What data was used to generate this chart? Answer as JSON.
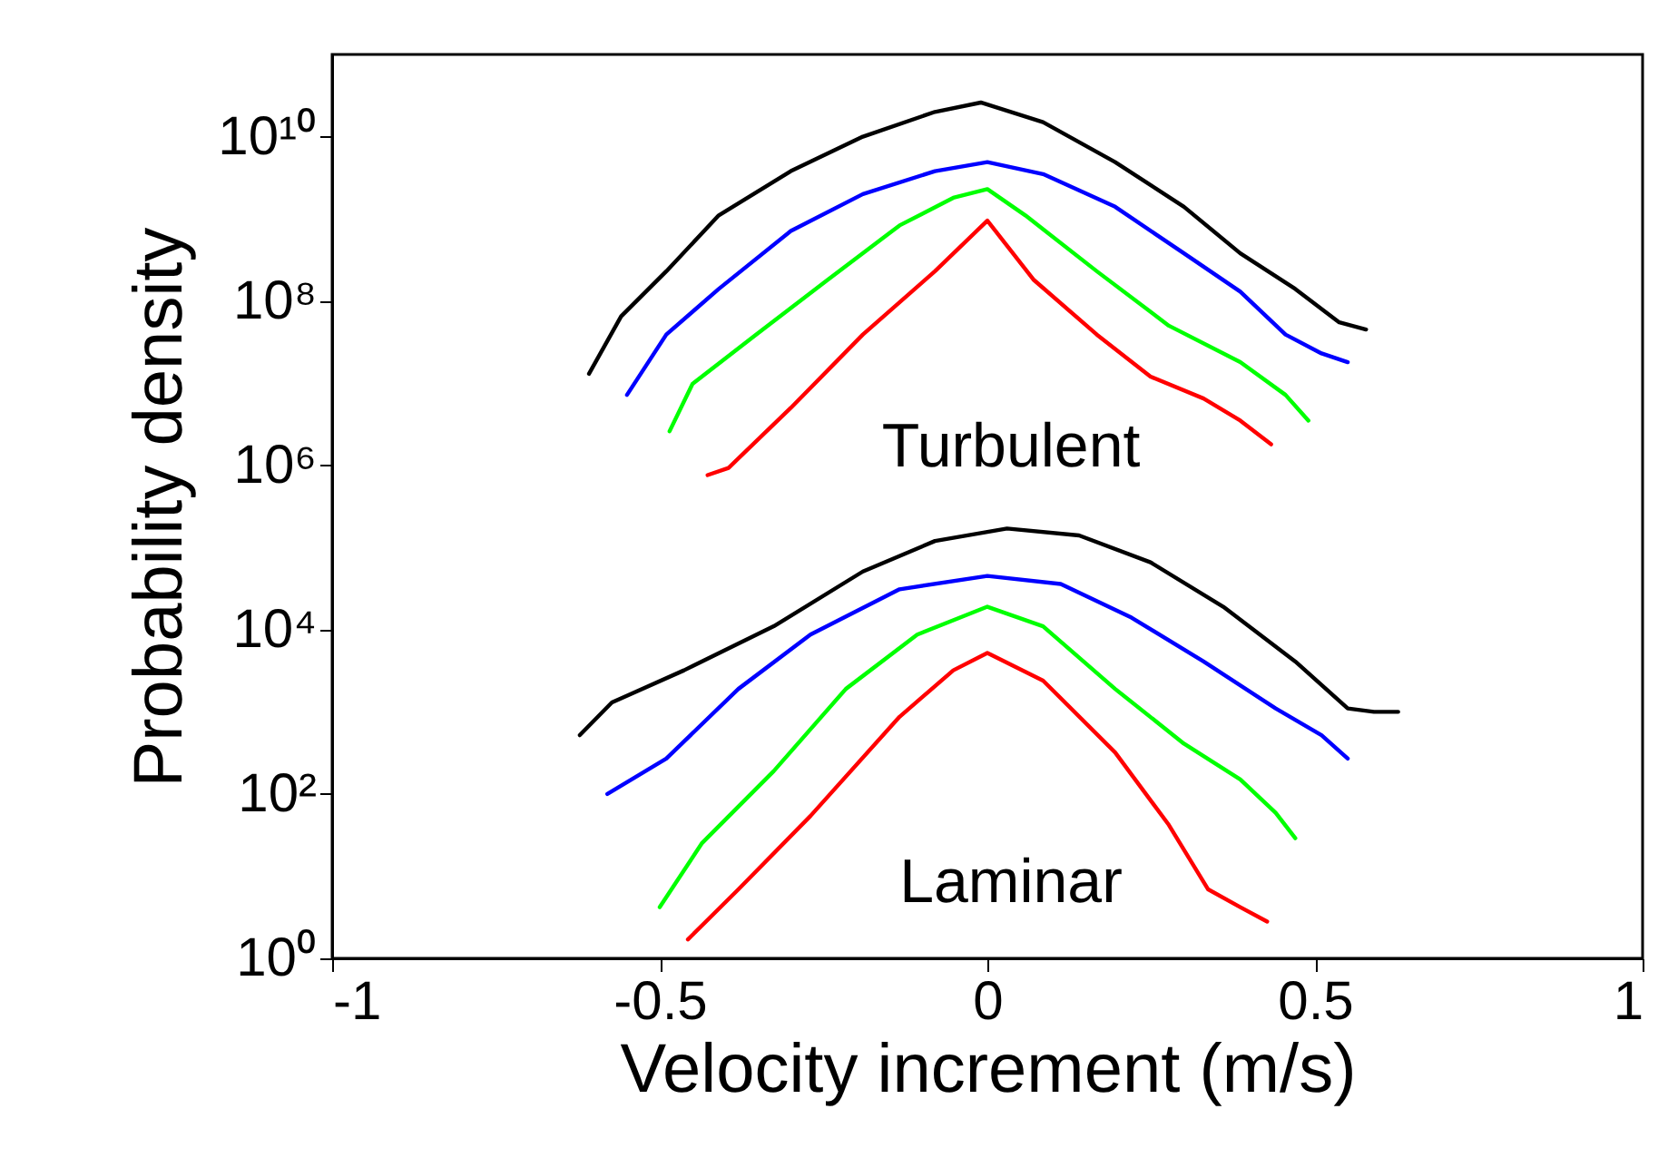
{
  "chart_data": {
    "type": "line",
    "xlabel": "Velocity increment (m/s)",
    "ylabel": "Probability density",
    "log": true,
    "grid": false,
    "legend": false,
    "marker": "none",
    "line_style": "solid",
    "xlim": [
      -1,
      1
    ],
    "xticks": [
      -1,
      -0.5,
      0,
      0.5,
      1
    ],
    "ylim": [
      1,
      100000000000.0
    ],
    "yticks": [
      {
        "value": 1,
        "label": "10⁰"
      },
      {
        "value": 100,
        "label": "10²"
      },
      {
        "value": 10000,
        "label": "10⁴"
      },
      {
        "value": 1000000,
        "label": "10⁶"
      },
      {
        "value": 100000000,
        "label": "10⁸"
      },
      {
        "value": 10000000000,
        "label": "10¹⁰"
      }
    ],
    "annotations": [
      "Turbulent",
      "Laminar"
    ],
    "series": [
      {
        "color": "#000000",
        "x": [
          -0.608,
          -0.559,
          -0.49,
          -0.41,
          -0.3,
          -0.19,
          -0.08,
          -0.01,
          0.085,
          0.195,
          0.3,
          0.386,
          0.47,
          0.537,
          0.578
        ],
        "values": [
          13000000.0,
          65000000.0,
          230000000.0,
          1100000000.0,
          3800000000.0,
          10000000000.0,
          20000000000.0,
          26000000000.0,
          15000000000.0,
          4900000000.0,
          1400000000.0,
          380000000.0,
          140000000.0,
          55000000.0,
          45000000.0
        ]
      },
      {
        "color": "#0000ff",
        "x": [
          -0.55,
          -0.49,
          -0.41,
          -0.3,
          -0.19,
          -0.08,
          0,
          0.085,
          0.195,
          0.3,
          0.386,
          0.455,
          0.51,
          0.55
        ],
        "values": [
          7200000.0,
          39000000.0,
          140000000.0,
          710000000.0,
          2000000000.0,
          3800000000.0,
          4900000000.0,
          3500000000.0,
          1400000000.0,
          380000000.0,
          130000000.0,
          39000000.0,
          23000000.0,
          18000000.0
        ]
      },
      {
        "color": "#00ff00",
        "x": [
          -0.485,
          -0.45,
          -0.353,
          -0.244,
          -0.134,
          -0.052,
          0,
          0.058,
          0.167,
          0.277,
          0.386,
          0.455,
          0.49
        ],
        "values": [
          2600000.0,
          9800000.0,
          39000000.0,
          180000000.0,
          830000000.0,
          1800000000.0,
          2300000000.0,
          1100000000.0,
          230000000.0,
          50000000.0,
          18000000.0,
          7200000.0,
          3500000.0
        ]
      },
      {
        "color": "#ff0000",
        "x": [
          -0.427,
          -0.395,
          -0.3,
          -0.19,
          -0.08,
          0,
          0.071,
          0.167,
          0.249,
          0.33,
          0.386,
          0.433
        ],
        "values": [
          760000.0,
          930000.0,
          5000000.0,
          39000000.0,
          230000000.0,
          950000000.0,
          180000000.0,
          39000000.0,
          12000000.0,
          6500000.0,
          3500000.0,
          1800000.0
        ]
      },
      {
        "color": "#000000",
        "x": [
          -0.622,
          -0.573,
          -0.463,
          -0.326,
          -0.19,
          -0.08,
          0.03,
          0.14,
          0.249,
          0.36,
          0.47,
          0.55,
          0.59,
          0.627
        ],
        "values": [
          520,
          1300,
          3200,
          11000,
          51000,
          120000,
          170000,
          140000,
          66000,
          19000,
          4100,
          1100,
          1000,
          1000
        ]
      },
      {
        "color": "#0000ff",
        "x": [
          -0.58,
          -0.49,
          -0.38,
          -0.27,
          -0.134,
          0,
          0.112,
          0.22,
          0.33,
          0.44,
          0.51,
          0.55
        ],
        "values": [
          100,
          270,
          1900,
          8700,
          31000,
          45000,
          36000,
          14000,
          4100,
          1100,
          520,
          270
        ]
      },
      {
        "color": "#00ff00",
        "x": [
          -0.5,
          -0.436,
          -0.326,
          -0.216,
          -0.107,
          0,
          0.085,
          0.195,
          0.3,
          0.386,
          0.44,
          0.47
        ],
        "values": [
          4.2,
          25,
          190,
          1900,
          8700,
          19000,
          11000,
          1900,
          410,
          150,
          59,
          29
        ]
      },
      {
        "color": "#ff0000",
        "x": [
          -0.457,
          -0.38,
          -0.27,
          -0.134,
          -0.052,
          0,
          0.085,
          0.195,
          0.277,
          0.337,
          0.386,
          0.427
        ],
        "values": [
          1.7,
          6.9,
          54,
          870,
          3200,
          5200,
          2400,
          320,
          42,
          6.9,
          4.2,
          2.8
        ]
      }
    ]
  }
}
